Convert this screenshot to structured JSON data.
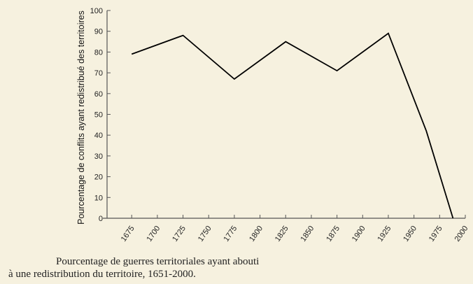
{
  "chart_data": {
    "type": "line",
    "ylabel": "Pourcentage de conflits ayant redistribué des territoires",
    "xlabel": "",
    "x_ticks": [
      "1675",
      "1700",
      "1725",
      "1750",
      "1775",
      "1800",
      "1825",
      "1850",
      "1875",
      "1900",
      "1925",
      "1950",
      "1975",
      "2000"
    ],
    "y_ticks": [
      "0",
      "10",
      "20",
      "30",
      "40",
      "50",
      "60",
      "70",
      "80",
      "90",
      "100"
    ],
    "xlim": [
      1651,
      2000
    ],
    "ylim": [
      0,
      100
    ],
    "grid": false,
    "series": [
      {
        "values": [
          {
            "x": 1675,
            "y": 79
          },
          {
            "x": 1725,
            "y": 88
          },
          {
            "x": 1775,
            "y": 67
          },
          {
            "x": 1825,
            "y": 85
          },
          {
            "x": 1875,
            "y": 71
          },
          {
            "x": 1925,
            "y": 89
          },
          {
            "x": 1962,
            "y": 42
          },
          {
            "x": 1988,
            "y": 0
          }
        ]
      }
    ],
    "color": "#000000"
  },
  "caption": {
    "line1": "Pourcentage de guerres territoriales ayant abouti",
    "line2": "à une redistribution du territoire, 1651-2000."
  }
}
